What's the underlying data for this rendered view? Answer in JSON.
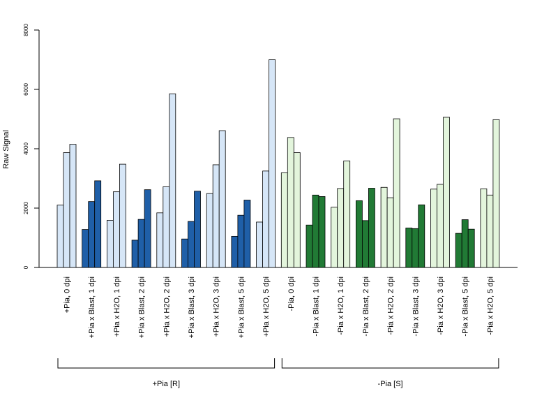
{
  "chart_data": {
    "type": "bar",
    "title": "",
    "xlabel": "",
    "ylabel": "Raw Signal",
    "ylim": [
      0,
      8000
    ],
    "y_ticks": [
      0,
      2000,
      4000,
      6000,
      8000
    ],
    "grid": false,
    "bars_per_category": 3,
    "categories": [
      "+Pia, 0 dpi",
      "+Pia x Blast, 1 dpi",
      "+Pia x H2O, 1 dpi",
      "+Pia x Blast, 2 dpi",
      "+Pia x H2O, 2 dpi",
      "+Pia x Blast, 3 dpi",
      "+Pia x H2O, 3 dpi",
      "+Pia x Blast, 5 dpi",
      "+Pia x H2O, 5 dpi",
      "-Pia, 0 dpi",
      "-Pia x Blast, 1 dpi",
      "-Pia x H2O, 1 dpi",
      "-Pia x Blast, 2 dpi",
      "-Pia x H2O, 2 dpi",
      "-Pia x Blast, 3 dpi",
      "-Pia x H2O, 3 dpi",
      "-Pia x Blast, 5 dpi",
      "-Pia x H2O, 5 dpi"
    ],
    "values": [
      [
        2100,
        3870,
        4150
      ],
      [
        1280,
        2220,
        2920
      ],
      [
        1590,
        2550,
        3480
      ],
      [
        920,
        1620,
        2620
      ],
      [
        1840,
        2720,
        5850
      ],
      [
        960,
        1550,
        2570
      ],
      [
        2490,
        3460,
        4610
      ],
      [
        1050,
        1760,
        2270
      ],
      [
        1530,
        3250,
        7000
      ],
      [
        3190,
        4380,
        3870
      ],
      [
        1430,
        2440,
        2390
      ],
      [
        2030,
        2660,
        3590
      ],
      [
        2250,
        1580,
        2670
      ],
      [
        2700,
        2350,
        5010
      ],
      [
        1330,
        1310,
        2110
      ],
      [
        2640,
        2800,
        5060
      ],
      [
        1150,
        1610,
        1290
      ],
      [
        2650,
        2440,
        4980
      ]
    ],
    "bar_colors": [
      "#d6e6f7",
      "#1f5fa8",
      "#d6e6f7",
      "#1f5fa8",
      "#d6e6f7",
      "#1f5fa8",
      "#d6e6f7",
      "#1f5fa8",
      "#d6e6f7",
      "#e3f5dc",
      "#217a35",
      "#e3f5dc",
      "#217a35",
      "#e3f5dc",
      "#217a35",
      "#e3f5dc",
      "#217a35",
      "#e3f5dc"
    ],
    "groups": [
      {
        "label": "+Pia [R]",
        "first_category": 0,
        "last_category": 8
      },
      {
        "label": "-Pia [S]",
        "first_category": 9,
        "last_category": 17
      }
    ]
  }
}
